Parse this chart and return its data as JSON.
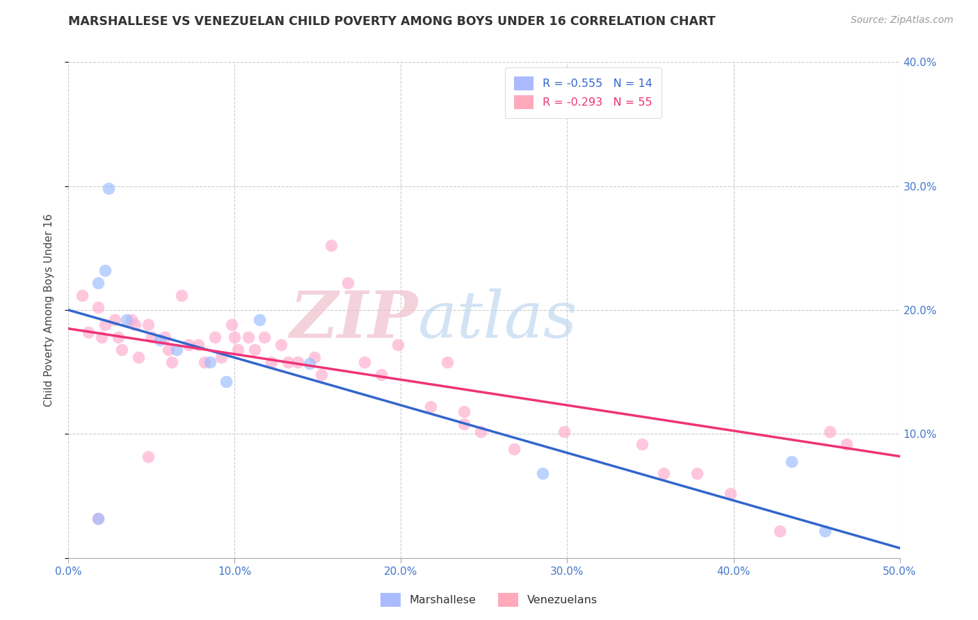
{
  "title": "MARSHALLESE VS VENEZUELAN CHILD POVERTY AMONG BOYS UNDER 16 CORRELATION CHART",
  "source": "Source: ZipAtlas.com",
  "ylabel": "Child Poverty Among Boys Under 16",
  "xlim": [
    0.0,
    0.5
  ],
  "ylim": [
    0.0,
    0.4
  ],
  "xticks": [
    0.0,
    0.1,
    0.2,
    0.3,
    0.4,
    0.5
  ],
  "yticks": [
    0.0,
    0.1,
    0.2,
    0.3,
    0.4
  ],
  "grid_color": "#cccccc",
  "background_color": "#ffffff",
  "blue_scatter_color": "#99bbff",
  "pink_scatter_color": "#ffaacc",
  "blue_line_color": "#3366cc",
  "pink_line_color": "#ee3377",
  "legend_R_blue": "-0.555",
  "legend_N_blue": "14",
  "legend_R_pink": "-0.293",
  "legend_N_pink": "55",
  "marshallese_x": [
    0.018,
    0.022,
    0.024,
    0.018,
    0.035,
    0.055,
    0.065,
    0.085,
    0.095,
    0.115,
    0.145,
    0.285,
    0.435,
    0.455
  ],
  "marshallese_y": [
    0.222,
    0.232,
    0.298,
    0.032,
    0.192,
    0.176,
    0.168,
    0.158,
    0.142,
    0.192,
    0.157,
    0.068,
    0.078,
    0.022
  ],
  "venezuelan_x": [
    0.008,
    0.012,
    0.018,
    0.02,
    0.022,
    0.028,
    0.03,
    0.032,
    0.038,
    0.04,
    0.042,
    0.048,
    0.05,
    0.058,
    0.06,
    0.062,
    0.068,
    0.072,
    0.078,
    0.082,
    0.088,
    0.092,
    0.098,
    0.1,
    0.102,
    0.108,
    0.112,
    0.118,
    0.122,
    0.128,
    0.132,
    0.138,
    0.148,
    0.152,
    0.158,
    0.168,
    0.178,
    0.188,
    0.198,
    0.218,
    0.228,
    0.238,
    0.248,
    0.268,
    0.298,
    0.345,
    0.358,
    0.378,
    0.398,
    0.428,
    0.458,
    0.468,
    0.018,
    0.048,
    0.238
  ],
  "venezuelan_y": [
    0.212,
    0.182,
    0.202,
    0.178,
    0.188,
    0.192,
    0.178,
    0.168,
    0.192,
    0.188,
    0.162,
    0.188,
    0.178,
    0.178,
    0.168,
    0.158,
    0.212,
    0.172,
    0.172,
    0.158,
    0.178,
    0.162,
    0.188,
    0.178,
    0.168,
    0.178,
    0.168,
    0.178,
    0.158,
    0.172,
    0.158,
    0.158,
    0.162,
    0.148,
    0.252,
    0.222,
    0.158,
    0.148,
    0.172,
    0.122,
    0.158,
    0.118,
    0.102,
    0.088,
    0.102,
    0.092,
    0.068,
    0.068,
    0.052,
    0.022,
    0.102,
    0.092,
    0.032,
    0.082,
    0.108
  ],
  "blue_trendline_x": [
    0.0,
    0.5
  ],
  "blue_trendline_y": [
    0.2,
    0.008
  ],
  "pink_trendline_x": [
    0.0,
    0.5
  ],
  "pink_trendline_y": [
    0.185,
    0.082
  ]
}
